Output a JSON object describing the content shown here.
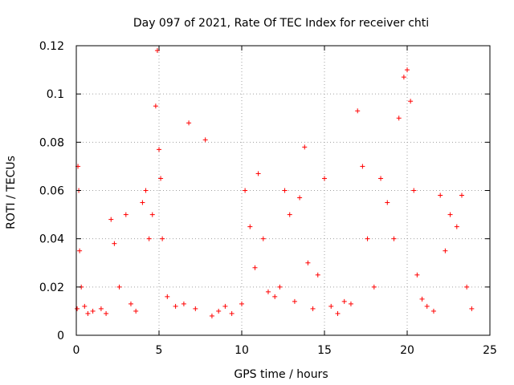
{
  "chart_data": {
    "type": "scatter",
    "title": "Day 097 of 2021, Rate Of TEC Index for receiver chti",
    "xlabel": "GPS time / hours",
    "ylabel": "ROTI / TECUs",
    "xlim": [
      0,
      25
    ],
    "ylim": [
      0,
      0.12
    ],
    "x_ticks": [
      0,
      5,
      10,
      15,
      20,
      25
    ],
    "x_tick_labels": [
      "0",
      "5",
      "10",
      "15",
      "20",
      "25"
    ],
    "y_ticks": [
      0,
      0.02,
      0.04,
      0.06,
      0.08,
      0.1,
      0.12
    ],
    "y_tick_labels": [
      "0",
      "0.02",
      "0.04",
      "0.06",
      "0.08",
      "0.1",
      "0.12"
    ],
    "grid": true,
    "marker": "+",
    "marker_color": "#ff0000",
    "series": [
      {
        "name": "ROTI",
        "x": [
          0.05,
          0.1,
          0.15,
          0.2,
          0.3,
          0.5,
          0.7,
          1.0,
          1.5,
          1.8,
          2.1,
          2.3,
          2.6,
          3.0,
          3.3,
          3.6,
          4.0,
          4.2,
          4.4,
          4.6,
          4.8,
          4.9,
          5.0,
          5.1,
          5.2,
          5.5,
          6.0,
          6.5,
          6.8,
          7.2,
          7.8,
          8.2,
          8.6,
          9.0,
          9.4,
          10.0,
          10.2,
          10.5,
          10.8,
          11.0,
          11.3,
          11.6,
          12.0,
          12.3,
          12.6,
          12.9,
          13.2,
          13.5,
          13.8,
          14.0,
          14.3,
          14.6,
          15.0,
          15.4,
          15.8,
          16.2,
          16.6,
          17.0,
          17.3,
          17.6,
          18.0,
          18.4,
          18.8,
          19.2,
          19.5,
          19.8,
          20.0,
          20.2,
          20.4,
          20.6,
          20.9,
          21.2,
          21.6,
          22.0,
          22.3,
          22.6,
          23.0,
          23.3,
          23.6,
          23.9
        ],
        "y": [
          0.011,
          0.07,
          0.06,
          0.035,
          0.02,
          0.012,
          0.009,
          0.01,
          0.011,
          0.009,
          0.048,
          0.038,
          0.02,
          0.05,
          0.013,
          0.01,
          0.055,
          0.06,
          0.04,
          0.05,
          0.095,
          0.118,
          0.077,
          0.065,
          0.04,
          0.016,
          0.012,
          0.013,
          0.088,
          0.011,
          0.081,
          0.008,
          0.01,
          0.012,
          0.009,
          0.013,
          0.06,
          0.045,
          0.028,
          0.067,
          0.04,
          0.018,
          0.016,
          0.02,
          0.06,
          0.05,
          0.014,
          0.057,
          0.078,
          0.03,
          0.011,
          0.025,
          0.065,
          0.012,
          0.009,
          0.014,
          0.013,
          0.093,
          0.07,
          0.04,
          0.02,
          0.065,
          0.055,
          0.04,
          0.09,
          0.107,
          0.11,
          0.097,
          0.06,
          0.025,
          0.015,
          0.012,
          0.01,
          0.058,
          0.035,
          0.05,
          0.045,
          0.058,
          0.02,
          0.011
        ]
      }
    ]
  }
}
